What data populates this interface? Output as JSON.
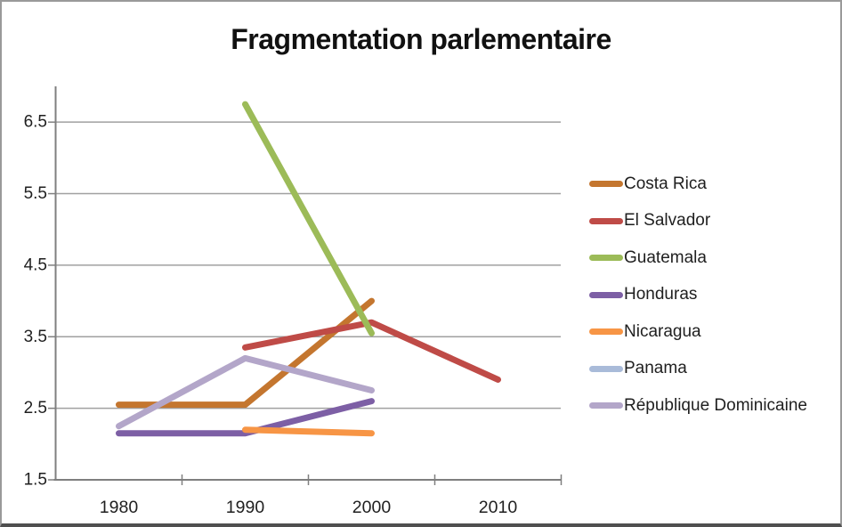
{
  "chart_data": {
    "type": "line",
    "title": "Fragmentation parlementaire",
    "xlabel": "",
    "ylabel": "",
    "categories": [
      "1980",
      "1990",
      "2000",
      "2010"
    ],
    "y_ticks": [
      1.5,
      2.5,
      3.5,
      4.5,
      5.5,
      6.5
    ],
    "y_tick_labels": [
      "1.5",
      "2.5",
      "3.5",
      "4.5",
      "5.5",
      "6.5"
    ],
    "ylim": [
      1.5,
      7.0
    ],
    "grid": true,
    "legend_position": "right",
    "line_width": 7,
    "series": [
      {
        "name": "Costa Rica",
        "color": "#C4762F",
        "values": [
          2.55,
          2.55,
          4.0,
          null
        ]
      },
      {
        "name": "El Salvador",
        "color": "#BF4B47",
        "values": [
          null,
          3.35,
          3.7,
          2.9
        ]
      },
      {
        "name": "Guatemala",
        "color": "#9CBB58",
        "values": [
          null,
          6.75,
          3.55,
          null
        ]
      },
      {
        "name": "Honduras",
        "color": "#7D5FA5",
        "values": [
          2.15,
          2.15,
          2.6,
          null
        ]
      },
      {
        "name": "Nicaragua",
        "color": "#F79545",
        "values": [
          null,
          2.2,
          2.15,
          null
        ]
      },
      {
        "name": "Panama",
        "color": "#A9BBD9",
        "values": [
          null,
          null,
          null,
          null
        ]
      },
      {
        "name": "République Dominicaine",
        "color": "#B3A6C9",
        "values": [
          2.25,
          3.2,
          2.75,
          null
        ]
      }
    ],
    "colors": {
      "gridline": "#A0A0A0",
      "axis": "#7F7F7F",
      "tick_label": "#1f1f1f"
    }
  }
}
